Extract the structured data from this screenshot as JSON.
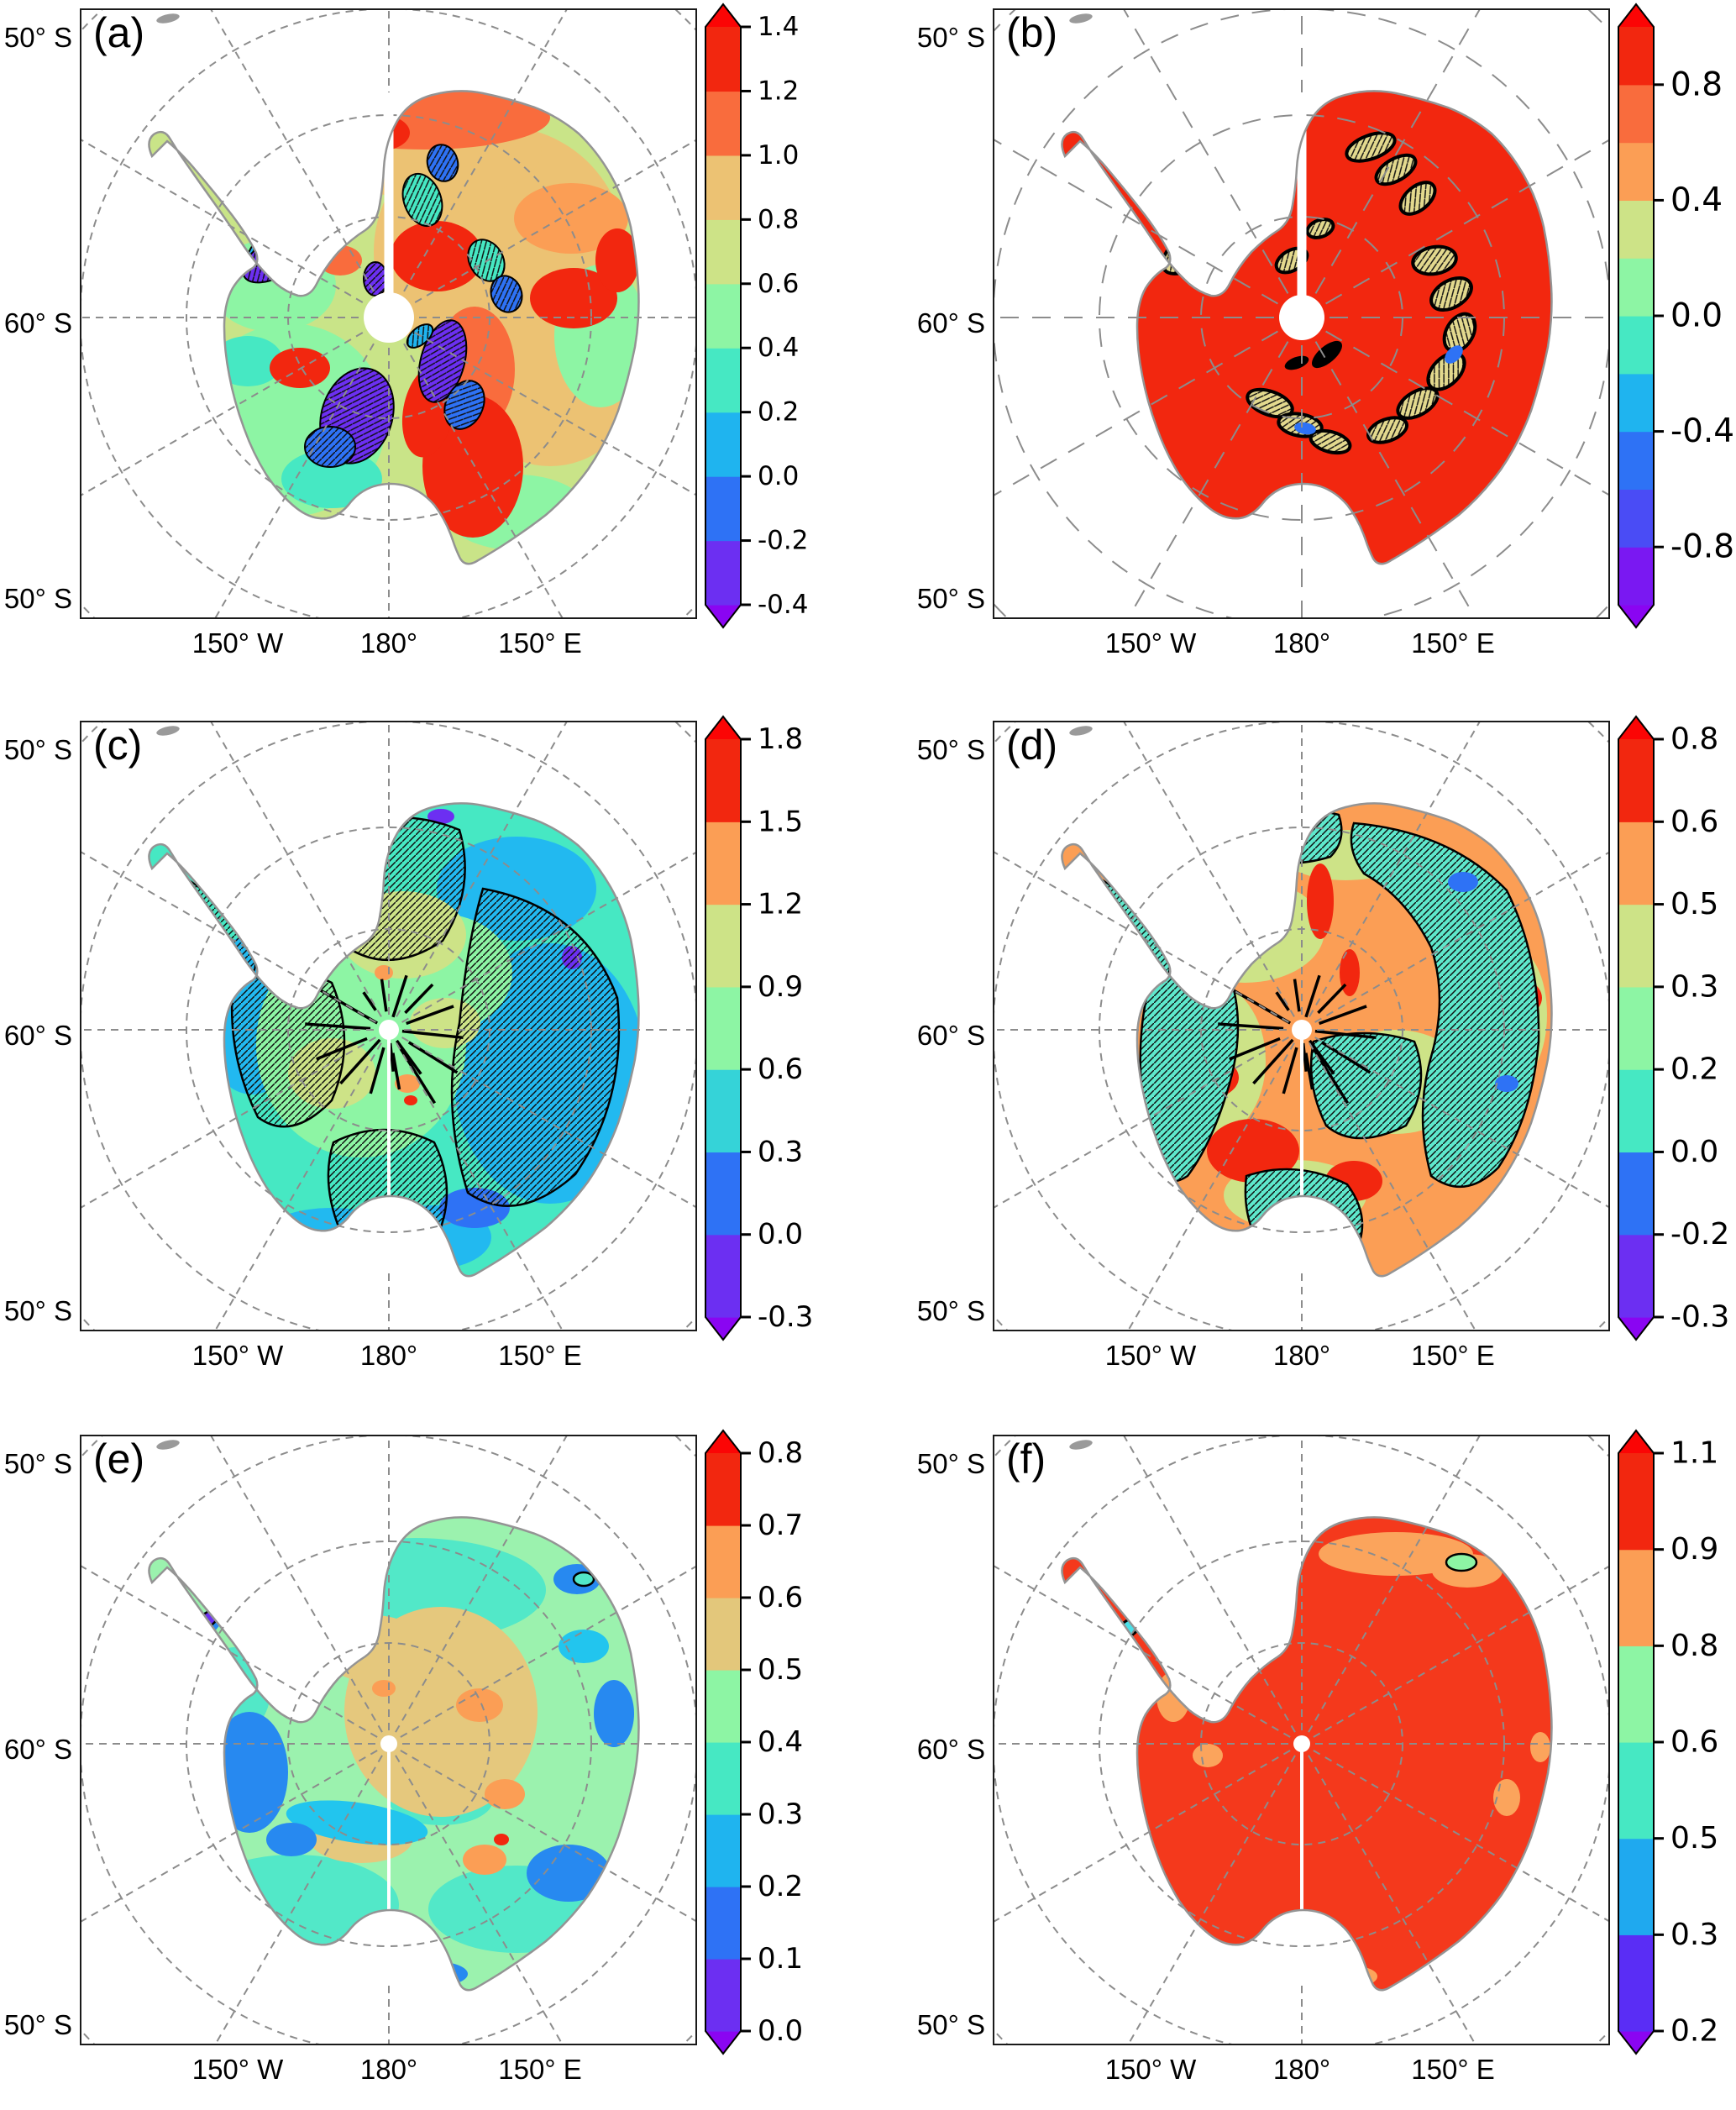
{
  "figure": {
    "type": "six-panel Antarctic polar stereographic filled-contour map figure",
    "background": "#ffffff"
  },
  "shared_axes": {
    "x_ticks": [
      "150° W",
      "180°",
      "150° E"
    ],
    "y_ticks": [
      "50° S",
      "60° S",
      "50° S"
    ]
  },
  "colors": {
    "coastline": "#949494",
    "graticule": "#8c8c8c",
    "panel_border": "#1a1a1a",
    "pole_dot": "#ffffff",
    "hatch": "#101010"
  },
  "panels": [
    {
      "id": "a",
      "label": "(a)",
      "colorbar": {
        "boundaries": [
          -0.4,
          -0.2,
          0.0,
          0.2,
          0.4,
          0.6,
          0.8,
          1.0,
          1.2,
          1.4
        ],
        "tick_labels": [
          "-0.4",
          "-0.2",
          "0.0",
          "0.2",
          "0.4",
          "0.6",
          "0.8",
          "1.0",
          "1.2",
          "1.4"
        ],
        "segment_colors": [
          "#6c2ff2",
          "#2e72f5",
          "#1fb4ef",
          "#46e8c3",
          "#8df5a4",
          "#cde387",
          "#ecc273",
          "#f96c3d",
          "#f2270f"
        ],
        "top_arrow": "#fb0505",
        "bottom_arrow": "#8a05f2"
      },
      "description": "Mixed warm field: green, tan and orange interior with scattered red maxima; black-outlined hatched blue-purple pockets over mountain ranges; fine-dashed graticule; wide white gap along the prime meridian above the pole hole."
    },
    {
      "id": "b",
      "label": "(b)",
      "colorbar": {
        "boundaries": [
          -1.0,
          -0.8,
          -0.6,
          -0.4,
          -0.2,
          0.0,
          0.2,
          0.4,
          0.6,
          0.8,
          1.0
        ],
        "tick_labels": [
          "-0.8",
          "-0.4",
          "0.0",
          "0.4",
          "0.8"
        ],
        "segment_colors": [
          "#7a18f2",
          "#4a4cf5",
          "#2e72f5",
          "#1fb4ef",
          "#46e8c3",
          "#8df5a4",
          "#cde387",
          "#fb9e55",
          "#f96c3d",
          "#f2270f"
        ],
        "top_arrow": "#fb0505",
        "bottom_arrow": "#8a05f2"
      },
      "description": "Continent almost uniformly red; small black-outlined hatched pockets of tan, green, cyan and blue over mountain ranges; long-dashed graticule; white gap above the pole hole."
    },
    {
      "id": "c",
      "label": "(c)",
      "colorbar": {
        "boundaries": [
          -0.3,
          0.0,
          0.3,
          0.6,
          0.9,
          1.2,
          1.5,
          1.8
        ],
        "tick_labels": [
          "-0.3",
          "0.0",
          "0.3",
          "0.6",
          "0.9",
          "1.2",
          "1.5",
          "1.8"
        ],
        "segment_colors": [
          "#6c2ff2",
          "#2e72f5",
          "#35d3d8",
          "#8df5a4",
          "#cde387",
          "#fb9e55",
          "#f2270f"
        ],
        "top_arrow": "#fb0505",
        "bottom_arrow": "#8a05f2"
      },
      "description": "Cool cyan-turquoise field with khaki and light-green interior patches, blue coastal pockets, small orange and purple spots; broad black-outlined hatched regions and black radial streaks near the pole."
    },
    {
      "id": "d",
      "label": "(d)",
      "colorbar": {
        "boundaries": [
          -0.3,
          -0.2,
          0.0,
          0.2,
          0.3,
          0.5,
          0.6,
          0.8
        ],
        "tick_labels": [
          "-0.3",
          "-0.2",
          "0.0",
          "0.2",
          "0.3",
          "0.5",
          "0.6",
          "0.8"
        ],
        "segment_colors": [
          "#6c2ff2",
          "#2e72f5",
          "#46e8c3",
          "#8df5a4",
          "#cde387",
          "#fb9e55",
          "#f2270f"
        ],
        "top_arrow": "#fb0505",
        "bottom_arrow": "#8a05f2"
      },
      "description": "Orange interior with red maxima and khaki transition zones, surrounded by black-outlined hatched turquoise-green coastal band; black radial streaks near the pole."
    },
    {
      "id": "e",
      "label": "(e)",
      "colorbar": {
        "boundaries": [
          0.0,
          0.1,
          0.2,
          0.3,
          0.4,
          0.5,
          0.6,
          0.7,
          0.8
        ],
        "tick_labels": [
          "0.0",
          "0.1",
          "0.2",
          "0.3",
          "0.4",
          "0.5",
          "0.6",
          "0.7",
          "0.8"
        ],
        "segment_colors": [
          "#6c2ff2",
          "#2e72f5",
          "#1fb4ef",
          "#46e8c3",
          "#8df5a4",
          "#e3c77b",
          "#fb9e55",
          "#f2270f"
        ],
        "top_arrow": "#fb0505",
        "bottom_arrow": "#8a05f2"
      },
      "description": "Light green and turquoise field with sandy-tan plateau patches and orange spots, blue coastal pockets, tiny purple spot outlined in black on the Antarctic Peninsula; no hatching."
    },
    {
      "id": "f",
      "label": "(f)",
      "colorbar": {
        "boundaries": [
          0.2,
          0.3,
          0.5,
          0.6,
          0.8,
          0.9,
          1.1
        ],
        "tick_labels": [
          "0.2",
          "0.3",
          "0.5",
          "0.6",
          "0.8",
          "0.9",
          "1.1"
        ],
        "segment_colors": [
          "#5a2df5",
          "#1fa9ef",
          "#46e8c3",
          "#8df5a4",
          "#fb9e55",
          "#f2270f"
        ],
        "top_arrow": "#fb0505",
        "bottom_arrow": "#8a05f2"
      },
      "description": "Continent almost uniformly orange-red with a few light-orange coastal patches and tiny black-outlined green and cyan spots on the Peninsula and the north-east coast."
    }
  ]
}
